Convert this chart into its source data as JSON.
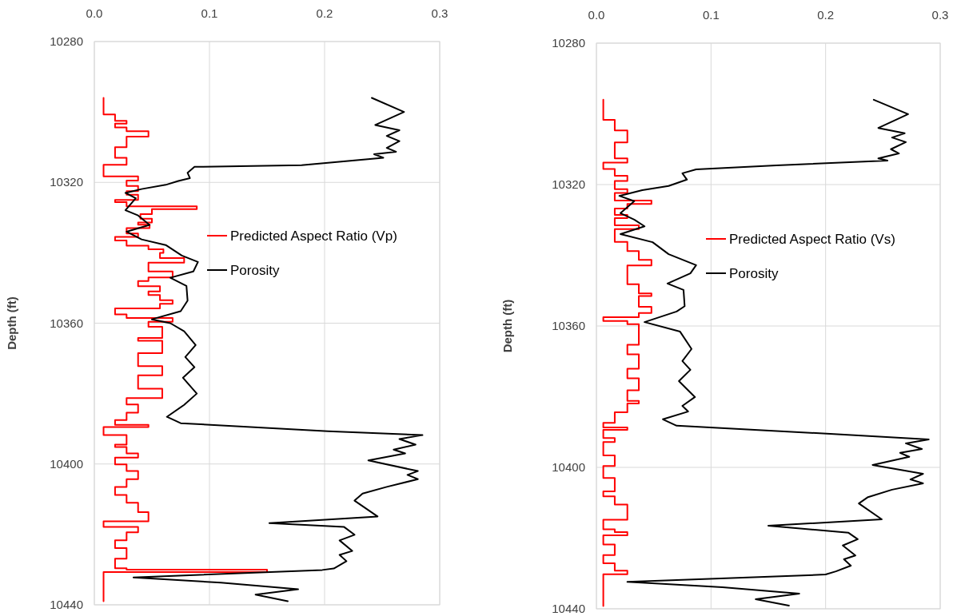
{
  "chart_data": [
    {
      "type": "line",
      "orientation": "horizontal",
      "ylabel": "Depth (ft)",
      "xlim": [
        0,
        0.3
      ],
      "xticks": [
        {
          "value": 0,
          "label": "0.0"
        },
        0.1,
        0.2,
        0.3
      ],
      "ylim": [
        10440,
        10280
      ],
      "yticks": [
        10280,
        10320,
        10360,
        10400,
        10440
      ],
      "grid": true,
      "legend": "right",
      "series": [
        {
          "name": "Predicted Aspect Ratio (Vp)",
          "color": "#ff0000",
          "type": "step",
          "x": [
            10296,
            10300.7,
            10302.5,
            10303.3,
            10304.4,
            10305.5,
            10307,
            10310,
            10313,
            10315,
            10318.3,
            10319.5,
            10321,
            10322.5,
            10323.5,
            10325,
            10325.6,
            10326.8,
            10327.6,
            10329,
            10330.3,
            10331.4,
            10332,
            10333,
            10334.5,
            10335.5,
            10336.5,
            10338,
            10339,
            10340,
            10341.5,
            10342.8,
            10345.3,
            10347,
            10348,
            10349.5,
            10351,
            10352,
            10353.5,
            10354.5,
            10355.8,
            10357.5,
            10358.5,
            10359.6,
            10361,
            10364.2,
            10365,
            10368.5,
            10372.2,
            10374.8,
            10378.6,
            10381.3,
            10383.1,
            10385.4,
            10387.5,
            10388.9,
            10389.5,
            10391.8,
            10394.5,
            10395.2,
            10397,
            10398.2,
            10400.1,
            10402,
            10404.3,
            10406.5,
            10408.8,
            10411,
            10413.7,
            10416.3,
            10417.9,
            10419.4,
            10421.7,
            10423.9,
            10426.9,
            10429.6,
            10430,
            10430.7,
            10439
          ],
          "values": [
            0.008,
            0.018,
            0.028,
            0.018,
            0.028,
            0.047,
            0.028,
            0.018,
            0.028,
            0.008,
            0.038,
            0.028,
            0.038,
            0.028,
            0.038,
            0.018,
            0.028,
            0.089,
            0.05,
            0.04,
            0.05,
            0.038,
            0.048,
            0.028,
            0.038,
            0.018,
            0.028,
            0.047,
            0.06,
            0.057,
            0.078,
            0.047,
            0.068,
            0.047,
            0.038,
            0.057,
            0.047,
            0.057,
            0.068,
            0.057,
            0.018,
            0.028,
            0.068,
            0.047,
            0.059,
            0.038,
            0.059,
            0.038,
            0.059,
            0.038,
            0.059,
            0.028,
            0.038,
            0.028,
            0.018,
            0.047,
            0.008,
            0.028,
            0.018,
            0.028,
            0.038,
            0.018,
            0.028,
            0.038,
            0.028,
            0.018,
            0.028,
            0.038,
            0.047,
            0.008,
            0.038,
            0.028,
            0.018,
            0.028,
            0.018,
            0.028,
            0.15,
            0.008,
            0.008
          ]
        },
        {
          "name": "Porosity",
          "color": "#000000",
          "type": "line",
          "x": [
            10296,
            10300,
            10303.7,
            10305.2,
            10306.8,
            10308.3,
            10310.2,
            10311.3,
            10312,
            10313,
            10315.1,
            10315.6,
            10317.3,
            10318.8,
            10319.6,
            10320.7,
            10321.9,
            10323,
            10324.5,
            10327.9,
            10329.4,
            10332.1,
            10334,
            10336.2,
            10337.8,
            10340.8,
            10342.6,
            10345.3,
            10347.1,
            10349.4,
            10353.6,
            10356.6,
            10358.9,
            10360,
            10362.3,
            10366.2,
            10369.6,
            10372.5,
            10375.5,
            10380,
            10383.2,
            10386.6,
            10388.4,
            10390.7,
            10391.8,
            10392.9,
            10394.5,
            10395.9,
            10397,
            10399,
            10402,
            10403.1,
            10404.3,
            10406.5,
            10408.4,
            10410.4,
            10414.9,
            10416.8,
            10417.9,
            10420.1,
            10421.7,
            10424.7,
            10425.8,
            10427.6,
            10429.7,
            10430.1,
            10432.2,
            10433.7,
            10435.6,
            10437.1,
            10439
          ],
          "values": [
            0.241,
            0.269,
            0.244,
            0.265,
            0.254,
            0.265,
            0.254,
            0.262,
            0.243,
            0.251,
            0.18,
            0.087,
            0.081,
            0.083,
            0.073,
            0.062,
            0.041,
            0.027,
            0.036,
            0.027,
            0.038,
            0.048,
            0.028,
            0.041,
            0.062,
            0.076,
            0.09,
            0.086,
            0.066,
            0.08,
            0.081,
            0.075,
            0.05,
            0.066,
            0.078,
            0.088,
            0.079,
            0.087,
            0.077,
            0.089,
            0.078,
            0.063,
            0.075,
            0.203,
            0.285,
            0.265,
            0.279,
            0.26,
            0.27,
            0.238,
            0.281,
            0.272,
            0.281,
            0.254,
            0.233,
            0.226,
            0.246,
            0.152,
            0.217,
            0.226,
            0.213,
            0.224,
            0.213,
            0.219,
            0.208,
            0.198,
            0.034,
            0.11,
            0.177,
            0.14,
            0.168
          ]
        }
      ]
    },
    {
      "type": "line",
      "orientation": "horizontal",
      "ylabel": "Depth (ft)",
      "xlim": [
        0,
        0.3
      ],
      "xticks": [
        {
          "value": 0,
          "label": "0.0"
        },
        0.1,
        0.2,
        0.3
      ],
      "ylim": [
        10440,
        10280
      ],
      "yticks": [
        10280,
        10320,
        10360,
        10400,
        10440
      ],
      "grid": true,
      "legend": "right",
      "series": [
        {
          "name": "Predicted Aspect Ratio (Vs)",
          "color": "#ff0000",
          "type": "step",
          "x": [
            10296,
            10301.7,
            10304.7,
            10308.1,
            10312.6,
            10313.8,
            10315.6,
            10317.5,
            10319,
            10321.3,
            10322.4,
            10324.5,
            10325.5,
            10326.8,
            10328.6,
            10329.5,
            10331.5,
            10332.6,
            10336.2,
            10338.8,
            10341.3,
            10342.9,
            10348.2,
            10350.8,
            10351.5,
            10354.6,
            10356.3,
            10357.5,
            10358.6,
            10359.5,
            10365.3,
            10368,
            10372.1,
            10374.8,
            10378.2,
            10381.2,
            10381.9,
            10384.4,
            10387.4,
            10388.7,
            10389.4,
            10391.7,
            10392.8,
            10396.6,
            10399.6,
            10403,
            10406.8,
            10408.2,
            10410.5,
            10414.8,
            10417.5,
            10418.3,
            10419.2,
            10421.8,
            10424.8,
            10427.1,
            10429.2,
            10430.2,
            10439.2
          ],
          "values": [
            0.006,
            0.016,
            0.027,
            0.016,
            0.027,
            0.006,
            0.016,
            0.027,
            0.016,
            0.027,
            0.016,
            0.048,
            0.027,
            0.016,
            0.027,
            0.016,
            0.037,
            0.016,
            0.027,
            0.037,
            0.048,
            0.027,
            0.037,
            0.048,
            0.037,
            0.048,
            0.037,
            0.006,
            0.027,
            0.037,
            0.027,
            0.037,
            0.027,
            0.037,
            0.027,
            0.037,
            0.027,
            0.016,
            0.006,
            0.027,
            0.006,
            0.016,
            0.006,
            0.016,
            0.006,
            0.016,
            0.006,
            0.016,
            0.027,
            0.006,
            0.016,
            0.027,
            0.006,
            0.016,
            0.006,
            0.016,
            0.027,
            0.006,
            0.006
          ]
        },
        {
          "name": "Porosity",
          "color": "#000000",
          "type": "line",
          "x": [
            10296,
            10300.1,
            10304,
            10305.5,
            10306.7,
            10308,
            10310,
            10311.2,
            10312.6,
            10313.2,
            10314.6,
            10315.7,
            10316.8,
            10318.6,
            10320.4,
            10321.6,
            10323.2,
            10324.7,
            10328.1,
            10329.9,
            10331.8,
            10334,
            10336.3,
            10339.7,
            10342.8,
            10345.1,
            10348,
            10349.8,
            10354.4,
            10355.9,
            10358.9,
            10361.6,
            10366.5,
            10369.9,
            10372.4,
            10375.6,
            10380.1,
            10382.6,
            10384.2,
            10386.4,
            10388.2,
            10390.5,
            10392.1,
            10393.2,
            10394.8,
            10395.9,
            10397,
            10399.3,
            10401.8,
            10403.4,
            10404.5,
            10406.3,
            10408.4,
            10410.2,
            10414.7,
            10416.5,
            10418.5,
            10420.3,
            10422.1,
            10424.9,
            10426,
            10427.8,
            10429.4,
            10430.3,
            10432.4,
            10433.9,
            10435.7,
            10437.3,
            10439.1
          ],
          "values": [
            0.242,
            0.272,
            0.246,
            0.269,
            0.258,
            0.27,
            0.257,
            0.264,
            0.246,
            0.254,
            0.157,
            0.087,
            0.075,
            0.079,
            0.063,
            0.04,
            0.02,
            0.033,
            0.021,
            0.033,
            0.042,
            0.021,
            0.049,
            0.063,
            0.087,
            0.082,
            0.062,
            0.076,
            0.077,
            0.07,
            0.042,
            0.073,
            0.083,
            0.075,
            0.082,
            0.072,
            0.086,
            0.075,
            0.08,
            0.058,
            0.07,
            0.204,
            0.29,
            0.27,
            0.284,
            0.265,
            0.273,
            0.241,
            0.285,
            0.274,
            0.285,
            0.258,
            0.237,
            0.229,
            0.249,
            0.15,
            0.22,
            0.228,
            0.215,
            0.226,
            0.216,
            0.222,
            0.209,
            0.2,
            0.027,
            0.11,
            0.177,
            0.139,
            0.168
          ]
        }
      ]
    }
  ]
}
